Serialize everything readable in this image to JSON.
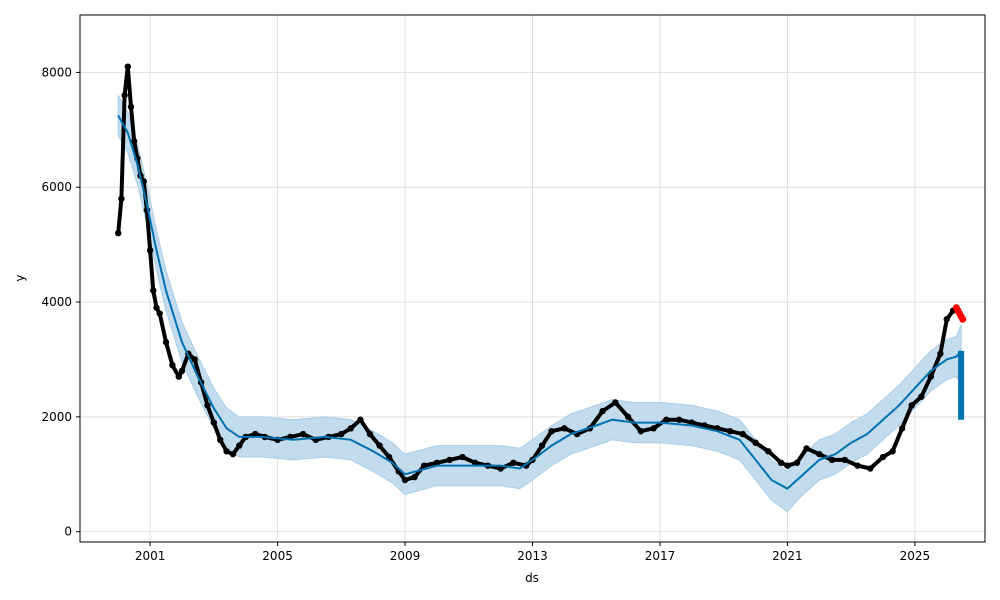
{
  "chart_data": {
    "type": "line",
    "title": "",
    "xlabel": "ds",
    "ylabel": "y",
    "xlim": [
      1998.8,
      2027.2
    ],
    "ylim": [
      -180,
      9000
    ],
    "grid": true,
    "x_ticks": [
      2001,
      2005,
      2009,
      2013,
      2017,
      2021,
      2025
    ],
    "x_tick_labels": [
      "2001",
      "2005",
      "2009",
      "2013",
      "2017",
      "2021",
      "2025"
    ],
    "y_ticks": [
      0,
      2000,
      4000,
      6000,
      8000
    ],
    "y_tick_labels": [
      "0",
      "2000",
      "4000",
      "6000",
      "8000"
    ],
    "colors": {
      "observed": "#000000",
      "forecast": "#0072B2",
      "uncertainty": "#c2dcee",
      "uncertainty_edge": "#a9cde6",
      "highlight": "#ff0000"
    },
    "series": [
      {
        "role": "observed",
        "style": "points",
        "x": [
          2000.0,
          2000.1,
          2000.2,
          2000.3,
          2000.4,
          2000.5,
          2000.6,
          2000.7,
          2000.8,
          2000.9,
          2001.0,
          2001.1,
          2001.2,
          2001.3,
          2001.5,
          2001.7,
          2001.9,
          2002.0,
          2002.2,
          2002.4,
          2002.6,
          2002.8,
          2003.0,
          2003.2,
          2003.4,
          2003.6,
          2003.8,
          2004.0,
          2004.3,
          2004.6,
          2005.0,
          2005.4,
          2005.8,
          2006.2,
          2006.6,
          2007.0,
          2007.3,
          2007.6,
          2007.9,
          2008.2,
          2008.5,
          2008.8,
          2009.0,
          2009.3,
          2009.6,
          2010.0,
          2010.4,
          2010.8,
          2011.2,
          2011.6,
          2012.0,
          2012.4,
          2012.8,
          2013.0,
          2013.3,
          2013.6,
          2014.0,
          2014.4,
          2014.8,
          2015.2,
          2015.6,
          2016.0,
          2016.4,
          2016.8,
          2017.2,
          2017.6,
          2018.0,
          2018.4,
          2018.8,
          2019.2,
          2019.6,
          2020.0,
          2020.4,
          2020.8,
          2021.0,
          2021.3,
          2021.6,
          2022.0,
          2022.4,
          2022.8,
          2023.2,
          2023.6,
          2024.0,
          2024.3,
          2024.6,
          2024.9,
          2025.2,
          2025.5,
          2025.8,
          2026.0,
          2026.2
        ],
        "y": [
          5200,
          5800,
          7600,
          8100,
          7400,
          6800,
          6500,
          6200,
          6100,
          5600,
          4900,
          4200,
          3900,
          3800,
          3300,
          2900,
          2700,
          2800,
          3100,
          3000,
          2600,
          2200,
          1900,
          1600,
          1400,
          1350,
          1500,
          1650,
          1700,
          1650,
          1600,
          1650,
          1700,
          1600,
          1650,
          1700,
          1800,
          1950,
          1700,
          1500,
          1300,
          1050,
          900,
          950,
          1150,
          1200,
          1250,
          1300,
          1200,
          1150,
          1100,
          1200,
          1150,
          1250,
          1500,
          1750,
          1800,
          1700,
          1800,
          2100,
          2250,
          2000,
          1750,
          1800,
          1950,
          1950,
          1900,
          1850,
          1800,
          1750,
          1700,
          1550,
          1400,
          1200,
          1150,
          1200,
          1450,
          1350,
          1250,
          1250,
          1150,
          1100,
          1300,
          1400,
          1800,
          2200,
          2350,
          2700,
          3100,
          3700,
          3850
        ]
      },
      {
        "role": "forecast",
        "style": "line",
        "x": [
          2000.0,
          2000.3,
          2000.6,
          2000.9,
          2001.2,
          2001.5,
          2002.0,
          2002.5,
          2003.0,
          2003.4,
          2003.8,
          2004.5,
          2005.5,
          2006.5,
          2007.3,
          2008.0,
          2008.6,
          2009.0,
          2010.0,
          2011.0,
          2012.0,
          2012.6,
          2013.0,
          2013.6,
          2014.2,
          2015.0,
          2015.5,
          2016.2,
          2017.0,
          2018.0,
          2018.8,
          2019.5,
          2020.0,
          2020.5,
          2021.0,
          2021.4,
          2022.0,
          2022.5,
          2023.0,
          2023.5,
          2024.0,
          2024.5,
          2025.0,
          2025.5,
          2026.0,
          2026.3,
          2026.45
        ],
        "y": [
          7250,
          6950,
          6400,
          5700,
          4900,
          4200,
          3300,
          2700,
          2150,
          1800,
          1650,
          1650,
          1600,
          1650,
          1600,
          1400,
          1200,
          1000,
          1150,
          1150,
          1150,
          1100,
          1250,
          1500,
          1700,
          1850,
          1950,
          1900,
          1900,
          1850,
          1750,
          1600,
          1250,
          900,
          750,
          950,
          1250,
          1350,
          1550,
          1700,
          1950,
          2200,
          2500,
          2800,
          3000,
          3050,
          3150
        ]
      },
      {
        "role": "uncertainty_lower",
        "style": "band",
        "x": [
          2000.0,
          2000.3,
          2000.6,
          2000.9,
          2001.2,
          2001.5,
          2002.0,
          2002.5,
          2003.0,
          2003.4,
          2003.8,
          2004.5,
          2005.5,
          2006.5,
          2007.3,
          2008.0,
          2008.6,
          2009.0,
          2010.0,
          2011.0,
          2012.0,
          2012.6,
          2013.0,
          2013.6,
          2014.2,
          2015.0,
          2015.5,
          2016.2,
          2017.0,
          2018.0,
          2018.8,
          2019.5,
          2020.0,
          2020.5,
          2021.0,
          2021.4,
          2022.0,
          2022.5,
          2023.0,
          2023.5,
          2024.0,
          2024.5,
          2025.0,
          2025.5,
          2026.0,
          2026.3,
          2026.45
        ],
        "y": [
          6900,
          6600,
          6050,
          5350,
          4550,
          3850,
          2950,
          2350,
          1800,
          1450,
          1300,
          1300,
          1250,
          1300,
          1250,
          1050,
          850,
          650,
          800,
          800,
          800,
          750,
          900,
          1150,
          1350,
          1500,
          1600,
          1550,
          1550,
          1500,
          1400,
          1250,
          900,
          550,
          350,
          600,
          900,
          1000,
          1200,
          1350,
          1600,
          1850,
          2150,
          2450,
          2650,
          2700,
          2550
        ]
      },
      {
        "role": "uncertainty_upper",
        "style": "band",
        "x": [
          2000.0,
          2000.3,
          2000.6,
          2000.9,
          2001.2,
          2001.5,
          2002.0,
          2002.5,
          2003.0,
          2003.4,
          2003.8,
          2004.5,
          2005.5,
          2006.5,
          2007.3,
          2008.0,
          2008.6,
          2009.0,
          2010.0,
          2011.0,
          2012.0,
          2012.6,
          2013.0,
          2013.6,
          2014.2,
          2015.0,
          2015.5,
          2016.2,
          2017.0,
          2018.0,
          2018.8,
          2019.5,
          2020.0,
          2020.5,
          2021.0,
          2021.4,
          2022.0,
          2022.5,
          2023.0,
          2023.5,
          2024.0,
          2024.5,
          2025.0,
          2025.5,
          2026.0,
          2026.3,
          2026.45
        ],
        "y": [
          7600,
          7300,
          6750,
          6050,
          5250,
          4550,
          3650,
          3050,
          2500,
          2150,
          2000,
          2000,
          1950,
          2000,
          1950,
          1750,
          1550,
          1350,
          1500,
          1500,
          1500,
          1450,
          1600,
          1850,
          2050,
          2200,
          2300,
          2250,
          2250,
          2200,
          2100,
          1950,
          1600,
          1250,
          1050,
          1300,
          1600,
          1700,
          1900,
          2050,
          2300,
          2550,
          2850,
          3150,
          3350,
          3400,
          3600
        ]
      },
      {
        "role": "forecast_highlight",
        "style": "points",
        "x": [
          2026.3,
          2026.35,
          2026.4,
          2026.45,
          2026.5
        ],
        "y": [
          3900,
          3850,
          3800,
          3750,
          3700
        ]
      }
    ]
  }
}
